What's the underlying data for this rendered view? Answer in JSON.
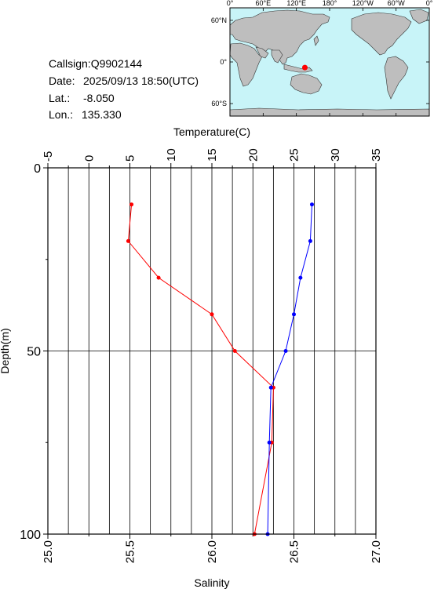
{
  "info": {
    "callsign_label": "Callsign:",
    "callsign": "Q9902144",
    "date_label": "Date:",
    "date": "2025/09/13 18:50(UTC)",
    "lat_label": "Lat.:",
    "lat": "-8.050",
    "lon_label": "Lon.:",
    "lon": "135.330"
  },
  "map": {
    "lon_ticks": [
      "0°",
      "60°E",
      "120°E",
      "180°",
      "120°W",
      "60°W",
      "0°"
    ],
    "lat_ticks": [
      "60°N",
      "0°",
      "60°S"
    ],
    "marker_lon": 135.33,
    "marker_lat": -8.05,
    "ocean_color": "#c8f4f8",
    "land_color": "#bebebe",
    "marker_color": "#ff0000"
  },
  "chart_data": {
    "type": "line",
    "ylabel": "Depth(m)",
    "ylim": [
      0,
      100
    ],
    "y_ticks": [
      0,
      50,
      100
    ],
    "y_inverted": true,
    "temperature_axis": {
      "label": "Temperature(C)",
      "range": [
        -5,
        35
      ],
      "ticks": [
        -5,
        0,
        5,
        10,
        15,
        20,
        25,
        30,
        35
      ],
      "tick_labels": [
        "-5",
        "0",
        "5",
        "10",
        "15",
        "20",
        "25",
        "30",
        "35"
      ]
    },
    "salinity_axis": {
      "label": "Salinity",
      "range": [
        25.0,
        27.0
      ],
      "ticks": [
        25.0,
        25.5,
        26.0,
        26.5,
        27.0
      ],
      "tick_labels": [
        "25.0",
        "25.5",
        "26.0",
        "26.5",
        "27.0"
      ]
    },
    "grid": true,
    "series": [
      {
        "variable": "temperature",
        "color": "#ff0000",
        "depth": [
          10,
          20,
          30,
          40,
          50,
          60,
          75,
          100
        ],
        "values": [
          5.2,
          4.8,
          8.5,
          15.0,
          17.8,
          22.5,
          22.3,
          20.2
        ]
      },
      {
        "variable": "salinity",
        "color": "#0000ff",
        "depth": [
          10,
          20,
          30,
          40,
          50,
          60,
          75,
          100
        ],
        "values": [
          26.61,
          26.6,
          26.54,
          26.5,
          26.45,
          26.36,
          26.35,
          26.34
        ]
      }
    ]
  }
}
